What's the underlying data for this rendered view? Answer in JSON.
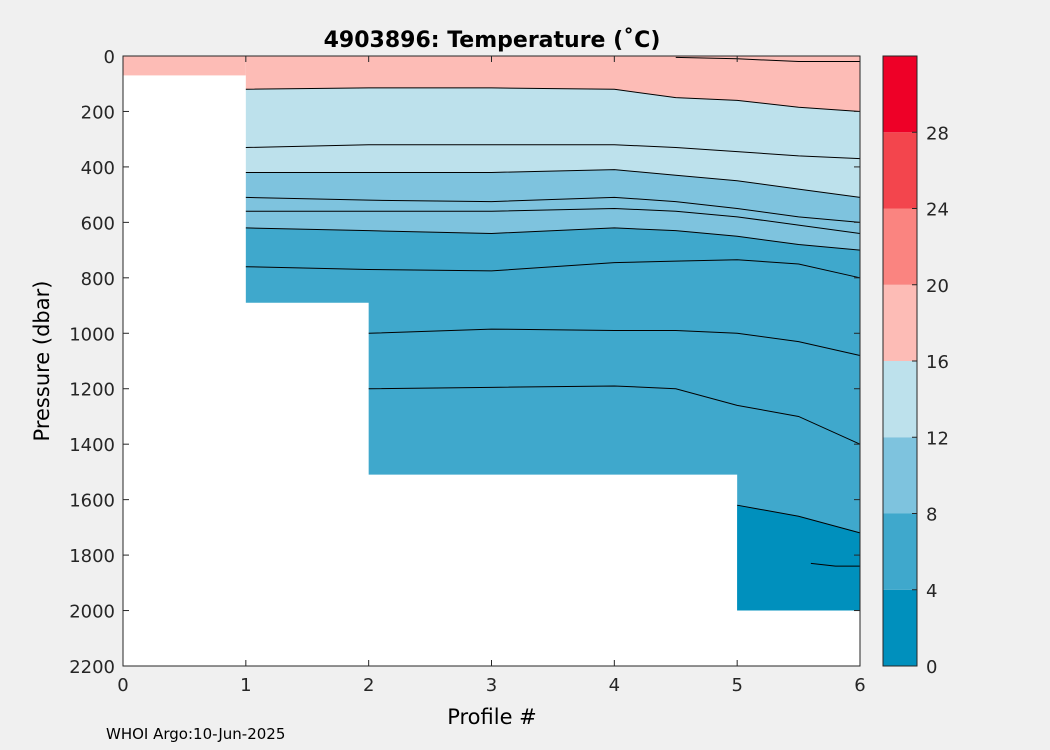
{
  "footer": "WHOI Argo:10-Jun-2025",
  "chart_data": {
    "type": "contourf",
    "title": "4903896:  Temperature (˚C)",
    "xlabel": "Profile #",
    "ylabel": "Pressure (dbar)",
    "xlim": [
      0,
      6
    ],
    "ylim": [
      0,
      2200
    ],
    "y_reversed": true,
    "xticks": [
      0,
      1,
      2,
      3,
      4,
      5,
      6
    ],
    "yticks": [
      0,
      200,
      400,
      600,
      800,
      1000,
      1200,
      1400,
      1600,
      1800,
      2000,
      2200
    ],
    "grid": false,
    "colorbar": {
      "levels": [
        0,
        4,
        8,
        12,
        16,
        20,
        24,
        28,
        32
      ],
      "tick_labels": [
        "0",
        "4",
        "8",
        "12",
        "16",
        "20",
        "24",
        "28"
      ],
      "colors": [
        "#0090bd",
        "#3fa8cc",
        "#7ec3de",
        "#bde1ec",
        "#fdbcb6",
        "#fa8480",
        "#f3454d",
        "#ee0027"
      ]
    },
    "band_colors": {
      "warm": "#fdbcb6",
      "t12_16": "#bde1ec",
      "t8_12": "#7ec3de",
      "t4_8": "#3fa8cc",
      "t0_4": "#0090bd"
    },
    "profile_coverage": [
      {
        "x_range": [
          0,
          1
        ],
        "max_pressure": 70
      },
      {
        "x_range": [
          1,
          2
        ],
        "max_pressure": 890
      },
      {
        "x_range": [
          2,
          5
        ],
        "max_pressure": 1510
      },
      {
        "x_range": [
          5,
          6
        ],
        "max_pressure": 2000
      }
    ],
    "isotherms": [
      {
        "x": [
          4.5,
          5,
          5.5,
          6
        ],
        "p": [
          5,
          10,
          20,
          20
        ]
      },
      {
        "x": [
          1,
          2,
          3,
          4,
          4.5,
          5,
          5.5,
          6
        ],
        "p": [
          120,
          115,
          115,
          120,
          150,
          160,
          185,
          200
        ]
      },
      {
        "x": [
          1,
          2,
          3,
          4,
          4.5,
          5,
          5.5,
          6
        ],
        "p": [
          330,
          320,
          320,
          320,
          330,
          345,
          360,
          370
        ]
      },
      {
        "x": [
          1,
          2,
          3,
          4,
          4.5,
          5,
          5.5,
          6
        ],
        "p": [
          420,
          420,
          420,
          410,
          430,
          450,
          480,
          510
        ]
      },
      {
        "x": [
          1,
          2,
          3,
          4,
          4.5,
          5,
          5.5,
          6
        ],
        "p": [
          510,
          520,
          525,
          510,
          525,
          550,
          580,
          600
        ]
      },
      {
        "x": [
          1,
          2,
          3,
          4,
          4.5,
          5,
          5.5,
          6
        ],
        "p": [
          560,
          560,
          560,
          550,
          560,
          580,
          610,
          640
        ]
      },
      {
        "x": [
          1,
          2,
          3,
          4,
          4.5,
          5,
          5.5,
          6
        ],
        "p": [
          620,
          630,
          640,
          620,
          630,
          650,
          680,
          700
        ]
      },
      {
        "x": [
          1,
          2,
          3,
          4,
          4.5,
          5,
          5.5,
          6
        ],
        "p": [
          760,
          770,
          775,
          745,
          740,
          735,
          750,
          800
        ]
      },
      {
        "x": [
          2,
          3,
          4,
          4.5,
          5,
          5.5,
          6
        ],
        "p": [
          1000,
          985,
          990,
          990,
          1000,
          1030,
          1080
        ]
      },
      {
        "x": [
          2,
          3,
          4,
          4.5,
          5,
          5.5,
          6
        ],
        "p": [
          1200,
          1195,
          1190,
          1200,
          1260,
          1300,
          1400
        ]
      },
      {
        "x": [
          5,
          5.5,
          6
        ],
        "p": [
          1620,
          1660,
          1720
        ]
      },
      {
        "x": [
          5.6,
          5.8,
          6
        ],
        "p": [
          1830,
          1840,
          1840
        ]
      }
    ]
  }
}
